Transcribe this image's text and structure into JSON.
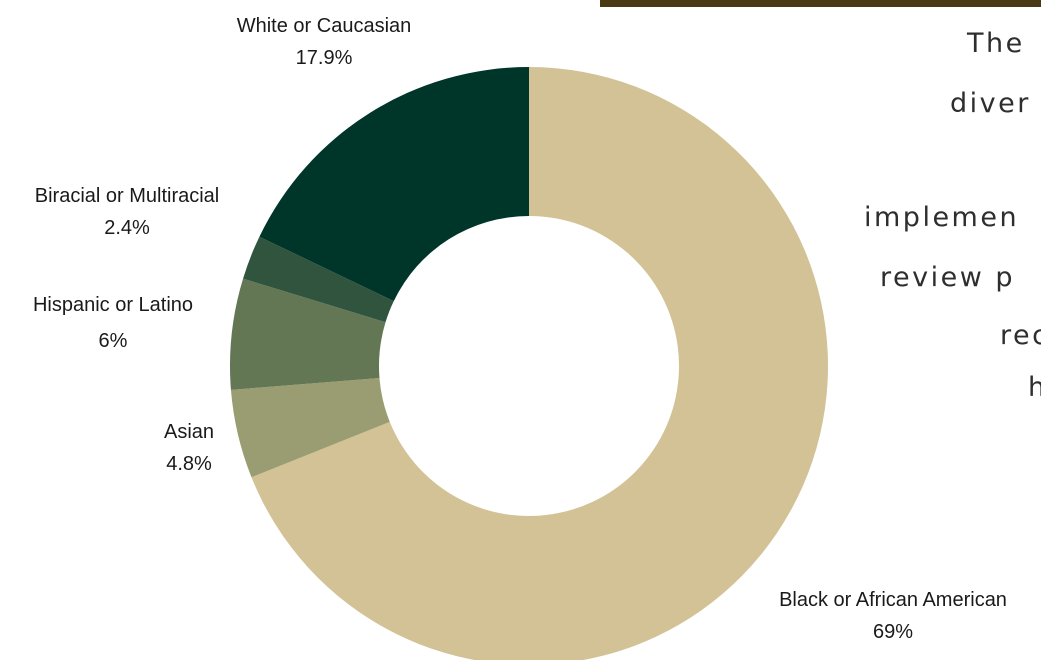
{
  "chart_data": {
    "type": "pie",
    "donut": true,
    "start_angle": "top, clockwise",
    "slices": [
      {
        "label": "Black or African American",
        "value_text": "69%",
        "value": 69,
        "color": "#d2c296"
      },
      {
        "label": "Asian",
        "value_text": "4.8%",
        "value": 4.8,
        "color": "#9a9c72"
      },
      {
        "label": "Hispanic or Latino",
        "value_text": "6%",
        "value": 6,
        "color": "#637755"
      },
      {
        "label": "Biracial or Multiracial",
        "value_text": "2.4%",
        "value": 2.4,
        "color": "#30543d"
      },
      {
        "label": "White or Caucasian",
        "value_text": "17.9%",
        "value": 17.9,
        "color": "#00352a"
      }
    ]
  },
  "side_text": {
    "lines": [
      "The",
      "diver",
      "implemen",
      "review p",
      "rec",
      "h"
    ]
  },
  "colors": {
    "top_bar": "#4a3a14",
    "text": "#1a1a1a"
  }
}
